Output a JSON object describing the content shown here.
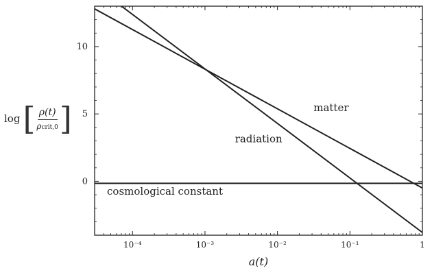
{
  "chart_data": {
    "type": "line",
    "title": "",
    "xlabel": "a(t)",
    "ylabel": {
      "prefix": "log",
      "numerator": "ρ(t)",
      "denominator": "ρ",
      "denominator_sub": "crit,0"
    },
    "x_scale": "log",
    "xlim": [
      3e-05,
      1
    ],
    "ylim": [
      -4,
      13
    ],
    "x_ticks": [
      {
        "value": 0.0001,
        "label": "10⁻⁴"
      },
      {
        "value": 0.001,
        "label": "10⁻³"
      },
      {
        "value": 0.01,
        "label": "10⁻²"
      },
      {
        "value": 0.1,
        "label": "10⁻¹"
      },
      {
        "value": 1,
        "label": "1"
      }
    ],
    "y_ticks": [
      {
        "value": 0,
        "label": "0"
      },
      {
        "value": 5,
        "label": "5"
      },
      {
        "value": 10,
        "label": "10"
      }
    ],
    "grid": false,
    "series": [
      {
        "name": "matter",
        "x": [
          3e-05,
          1
        ],
        "y": [
          12.8,
          -0.5
        ]
      },
      {
        "name": "radiation",
        "x": [
          3e-05,
          1
        ],
        "y": [
          14.5,
          -3.8
        ]
      },
      {
        "name": "cosmological constant",
        "x": [
          3e-05,
          1
        ],
        "y": [
          -0.15,
          -0.15
        ]
      }
    ],
    "annotations": [
      {
        "text": "matter",
        "x": 0.055,
        "y": 5.2
      },
      {
        "text": "radiation",
        "x": 0.0055,
        "y": 2.9
      },
      {
        "text": "cosmological constant",
        "x": 0.00028,
        "y": -1.0
      }
    ]
  }
}
